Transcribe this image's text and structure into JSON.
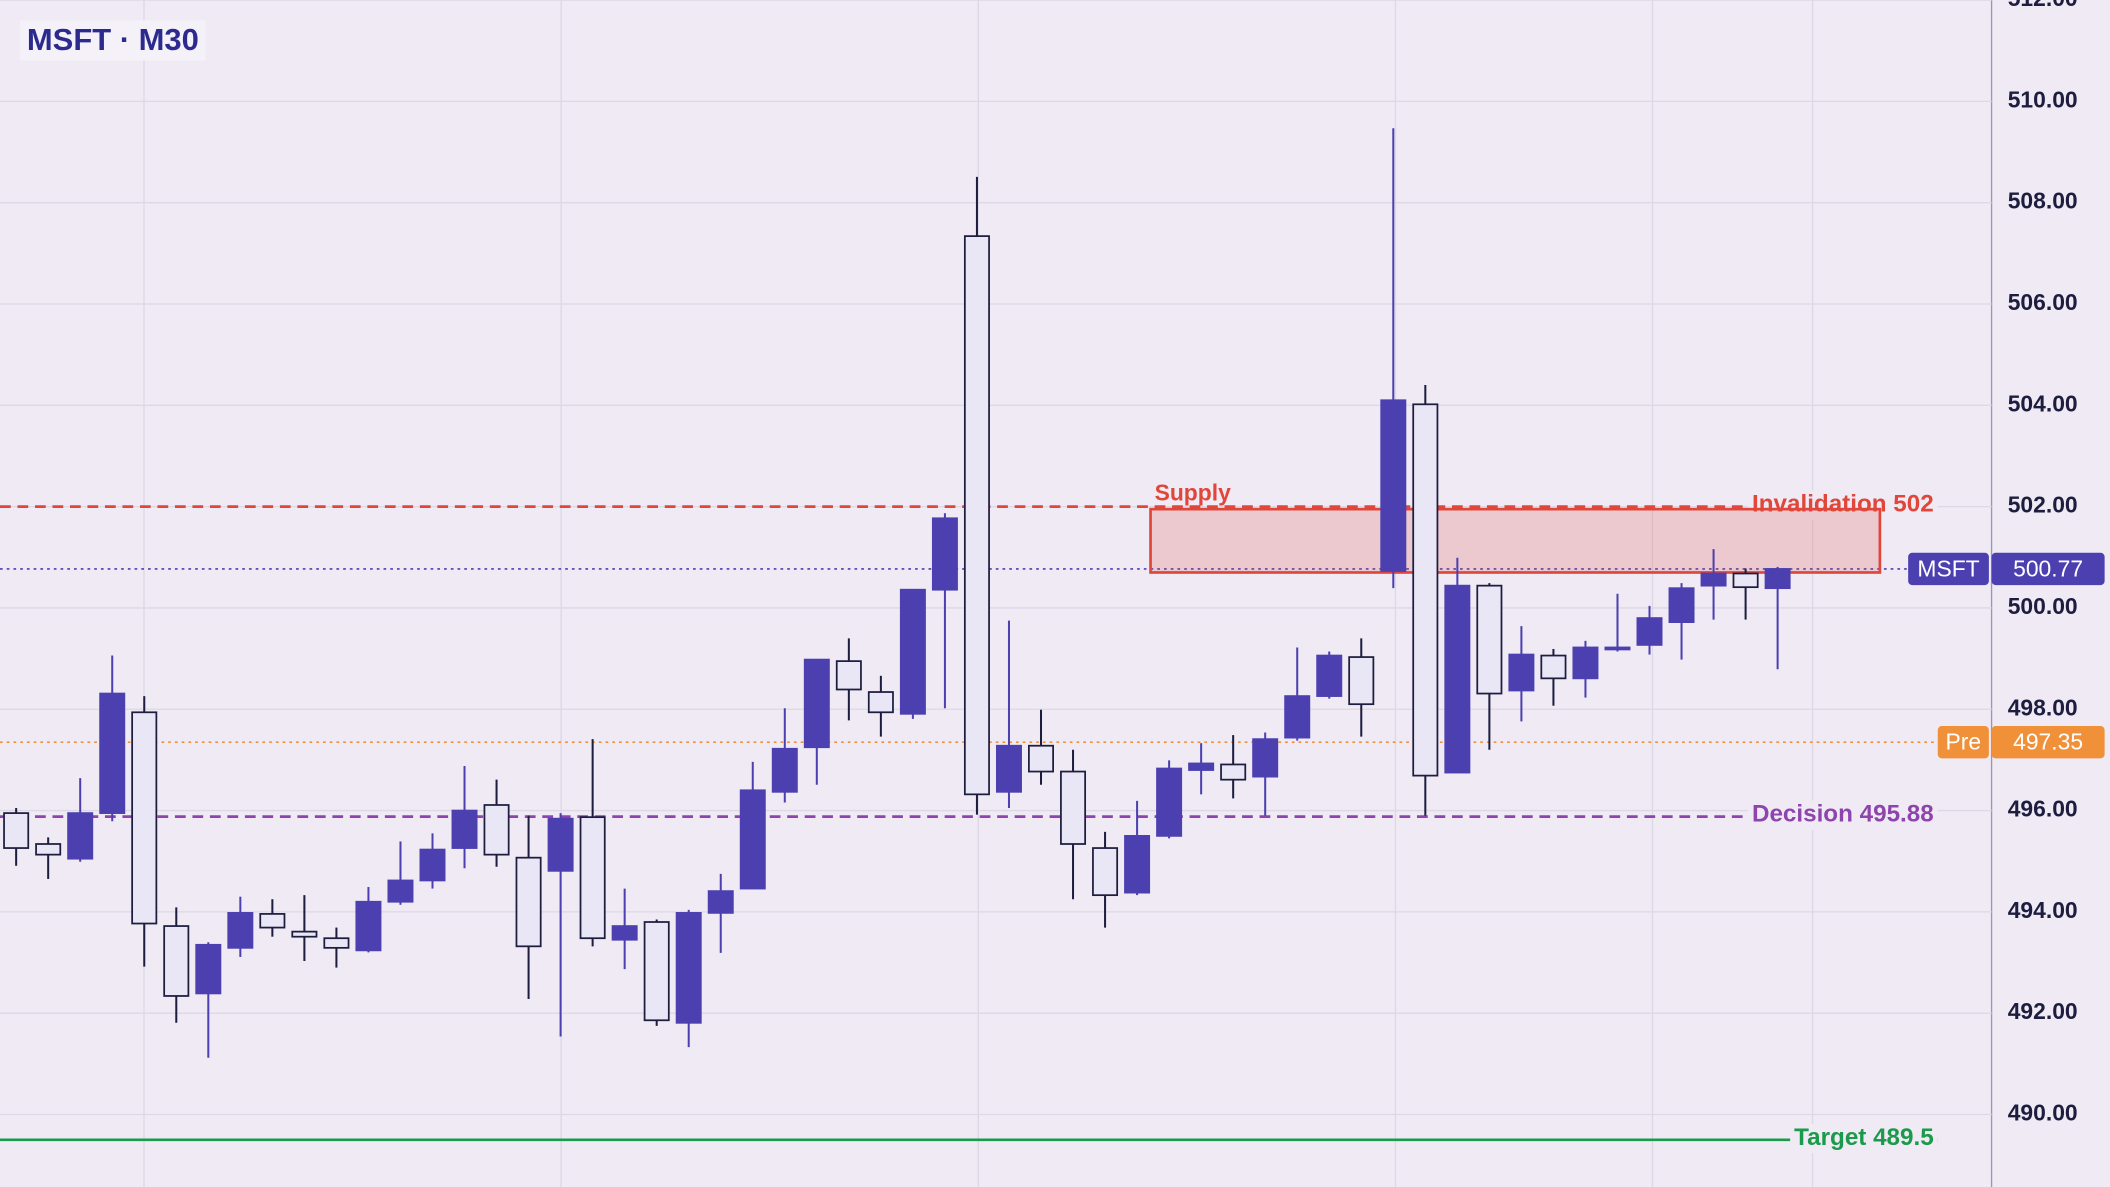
{
  "chart_data": {
    "type": "candlestick",
    "title": "MSFT · M30",
    "ylim": [
      488.57,
      512
    ],
    "yticks": [
      {
        "value": 490,
        "label": "490.00"
      },
      {
        "value": 492,
        "label": "492.00"
      },
      {
        "value": 494,
        "label": "494.00"
      },
      {
        "value": 496,
        "label": "496.00"
      },
      {
        "value": 498,
        "label": "498.00"
      },
      {
        "value": 500,
        "label": "500.00"
      },
      {
        "value": 502,
        "label": "502.00"
      },
      {
        "value": 504,
        "label": "504.00"
      },
      {
        "value": 506,
        "label": "506.00"
      },
      {
        "value": 508,
        "label": "508.00"
      },
      {
        "value": 510,
        "label": "510.00"
      },
      {
        "value": 512,
        "label": "512.00"
      }
    ],
    "grid": true,
    "up_color": "#4c40b0",
    "down_color": "#e9e6f5",
    "open": [
      495.95,
      495.34,
      495.05,
      495.95,
      497.94,
      493.72,
      492.39,
      493.29,
      493.96,
      493.61,
      493.48,
      493.24,
      494.2,
      494.62,
      495.26,
      496.11,
      495.07,
      494.81,
      495.87,
      493.45,
      493.8,
      491.81,
      493.98,
      494.46,
      496.37,
      497.25,
      498.95,
      498.34,
      497.91,
      500.36,
      507.34,
      496.37,
      497.28,
      496.77,
      495.26,
      494.38,
      495.5,
      496.8,
      496.91,
      496.67,
      497.44,
      498.26,
      499.03,
      500.73,
      504.02,
      496.75,
      500.44,
      498.37,
      499.06,
      498.61,
      499.19,
      499.27,
      499.72,
      500.44,
      500.68,
      500.39
    ],
    "high": [
      496.05,
      495.47,
      496.64,
      499.06,
      498.26,
      494.09,
      493.4,
      494.3,
      494.25,
      494.33,
      493.69,
      494.49,
      495.39,
      495.55,
      496.88,
      496.61,
      495.9,
      495.95,
      497.41,
      494.46,
      493.85,
      494.04,
      494.75,
      496.96,
      498.02,
      498.98,
      499.4,
      498.66,
      500.36,
      501.87,
      508.51,
      499.75,
      497.99,
      497.2,
      495.58,
      496.19,
      496.99,
      497.33,
      497.49,
      497.54,
      499.22,
      499.14,
      499.4,
      509.47,
      504.4,
      500.99,
      500.49,
      499.64,
      499.19,
      499.35,
      500.28,
      500.04,
      500.49,
      501.16,
      500.78,
      500.81
    ],
    "low": [
      494.91,
      494.65,
      494.99,
      495.79,
      492.92,
      491.81,
      491.12,
      493.11,
      493.51,
      493.03,
      492.9,
      493.2,
      494.14,
      494.46,
      494.86,
      494.89,
      492.28,
      491.54,
      493.32,
      492.87,
      491.75,
      491.33,
      493.19,
      494.46,
      496.16,
      496.51,
      497.78,
      497.46,
      497.81,
      498.02,
      495.92,
      496.05,
      496.51,
      494.25,
      493.69,
      494.33,
      495.45,
      496.32,
      496.24,
      495.9,
      497.38,
      498.21,
      497.46,
      500.39,
      495.9,
      496.75,
      497.2,
      497.76,
      498.07,
      498.23,
      499.14,
      499.08,
      498.98,
      499.77,
      499.77,
      498.79
    ],
    "close": [
      495.26,
      495.13,
      495.95,
      498.31,
      493.77,
      492.34,
      493.35,
      493.98,
      493.69,
      493.51,
      493.29,
      494.2,
      494.62,
      495.23,
      496.0,
      495.13,
      493.32,
      495.84,
      493.48,
      493.72,
      491.86,
      493.98,
      494.41,
      496.4,
      497.22,
      498.98,
      498.39,
      497.94,
      500.36,
      501.77,
      496.32,
      497.28,
      496.77,
      495.34,
      494.33,
      495.5,
      496.83,
      496.93,
      496.61,
      497.41,
      498.26,
      499.06,
      498.1,
      504.1,
      496.69,
      500.44,
      498.31,
      499.08,
      498.61,
      499.22,
      499.22,
      499.8,
      500.39,
      500.68,
      500.41,
      500.77
    ],
    "zone": {
      "label": "Supply",
      "range": [
        500.7,
        501.95
      ],
      "color": "#e0473a"
    },
    "levels": [
      {
        "label": "Invalidation 502",
        "value": 502,
        "color": "#e0473a",
        "style": "dashed"
      },
      {
        "label": "Decision 495.88",
        "value": 495.88,
        "color": "#8e44ad",
        "style": "dashed"
      },
      {
        "label": "Target 489.5",
        "value": 489.5,
        "color": "#1a9a4a",
        "style": "solid"
      }
    ],
    "last_price": {
      "label": "MSFT",
      "value": 500.77,
      "color": "#4c40b0"
    },
    "pre_market": {
      "label": "Pre",
      "value": 497.35,
      "color": "#f0913a"
    }
  }
}
